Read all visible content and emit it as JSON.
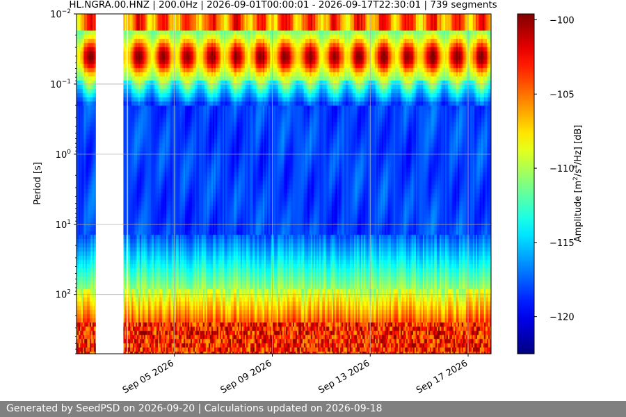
{
  "chart_data": {
    "type": "heatmap",
    "title": "HL.NGRA.00.HNZ | 200.0Hz | 2026-09-01T00:00:01 - 2026-09-17T22:30:01 | 739 segments",
    "xlabel": "",
    "ylabel": "Period [s]",
    "x_ticks": [
      "Sep 05 2026",
      "Sep 09 2026",
      "Sep 13 2026",
      "Sep 17 2026"
    ],
    "x_tick_dates": [
      "2026-09-05",
      "2026-09-09",
      "2026-09-13",
      "2026-09-17"
    ],
    "x_range": [
      "2026-09-01T00:00:01",
      "2026-09-17T22:30:01"
    ],
    "y_scale": "log",
    "y_inverted": true,
    "y_ticks": [
      {
        "value": 0.01,
        "base": "10",
        "exp": "−2"
      },
      {
        "value": 0.1,
        "base": "10",
        "exp": "−1"
      },
      {
        "value": 1,
        "base": "10",
        "exp": "0"
      },
      {
        "value": 10,
        "base": "10",
        "exp": "1"
      },
      {
        "value": 100,
        "base": "10",
        "exp": "2"
      }
    ],
    "y_range": [
      0.01,
      700
    ],
    "grid": true,
    "colormap": "jet",
    "colorbar": {
      "label": "Amplitude [m²/s⁴/Hz] [dB]",
      "ticks": [
        "−100",
        "−105",
        "−110",
        "−115",
        "−120"
      ],
      "tick_values": [
        -100,
        -105,
        -110,
        -115,
        -120
      ],
      "range": [
        -122.5,
        -99.6
      ]
    },
    "data_gaps": [
      {
        "start": "2026-09-01T19:00",
        "end": "2026-09-02T22:00"
      },
      {
        "start": "2026-09-03T01:30",
        "end": "2026-09-03T02:10"
      }
    ],
    "colors": {
      "jet_dark_blue": "#00008f",
      "jet_blue": "#0000ff",
      "jet_cyan": "#00ffff",
      "jet_yellow": "#ffff00",
      "jet_red": "#ff0000",
      "jet_dark_red": "#800000"
    }
  },
  "footer": {
    "text": "Generated by SeedPSD on 2026-09-20 | Calculations updated on 2026-09-18"
  }
}
